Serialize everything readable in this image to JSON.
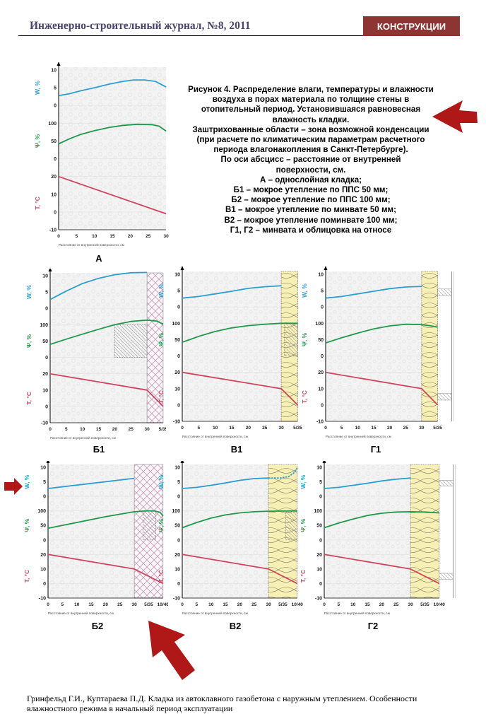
{
  "header": {
    "journal": "Инженерно-строительный журнал, №8, 2011",
    "section": "КОНСТРУКЦИИ",
    "accent_color": "#8e3433"
  },
  "caption": {
    "lines": [
      "Рисунок 4. Распределение влаги, температуры и влажности",
      "воздуха в порах материала по толщине стены в",
      "отопительный период. Установившаяся равновесная",
      "влажность кладки.",
      "Заштрихованные области – зона возможной конденсации",
      "(при расчете по климатическим параметрам расчетного",
      "периода влагонакопления в Санкт-Петербурге).",
      "По оси абсцисс – расстояние от внутренней",
      "поверхности, см.",
      "А – однослойная кладка;",
      "Б1 – мокрое утепление по ППС 50 мм;",
      "Б2 – мокрое утепление по ППС 100 мм;",
      "В1 – мокрое утепление по минвате 50 мм;",
      "В2 – мокрое утепление поминвате 100 мм;",
      "Г1, Г2 – минвата и облицовка на относе"
    ]
  },
  "axes": {
    "w_label": "W, %",
    "psi_label": "Ψ, %",
    "t_label": "T, °C",
    "x_title": "Расстояние от внутренней поверхности, см",
    "w_ticks": [
      "10",
      "5",
      "0"
    ],
    "psi_ticks": [
      "100",
      "50",
      "0"
    ],
    "t_ticks": [
      "20",
      "10",
      "0",
      "-10"
    ],
    "colors": {
      "W": "#2a9fd0",
      "Psi": "#1f9a4a",
      "T": "#d0455e"
    }
  },
  "chart_data": [
    {
      "id": "A",
      "label": "А",
      "type": "line",
      "layer": "none",
      "ext_cm": 0,
      "x_ticks": [
        "0",
        "5",
        "10",
        "15",
        "20",
        "25",
        "30"
      ],
      "W": [
        [
          0,
          2.8
        ],
        [
          3,
          3.3
        ],
        [
          6,
          4.1
        ],
        [
          10,
          5.0
        ],
        [
          14,
          6.0
        ],
        [
          18,
          6.8
        ],
        [
          21,
          7.2
        ],
        [
          24,
          7.2
        ],
        [
          27,
          6.8
        ],
        [
          30,
          5.2
        ]
      ],
      "Psi": [
        [
          0,
          42
        ],
        [
          3,
          56
        ],
        [
          6,
          68
        ],
        [
          10,
          79
        ],
        [
          14,
          88
        ],
        [
          18,
          94
        ],
        [
          22,
          97
        ],
        [
          26,
          96
        ],
        [
          28,
          92
        ],
        [
          30,
          78
        ]
      ],
      "T": [
        [
          0,
          20
        ],
        [
          30,
          -1
        ]
      ]
    },
    {
      "id": "B1",
      "label": "Б1",
      "type": "line",
      "layer": "cross",
      "ext_cm": 5,
      "x_ticks": [
        "0",
        "5",
        "10",
        "15",
        "20",
        "25",
        "30",
        "5/35"
      ],
      "W": [
        [
          0,
          2.7
        ],
        [
          5,
          5.3
        ],
        [
          10,
          7.6
        ],
        [
          15,
          9.2
        ],
        [
          20,
          10.3
        ],
        [
          25,
          10.9
        ],
        [
          30,
          11.0
        ]
      ],
      "Psi": [
        [
          0,
          40
        ],
        [
          5,
          56
        ],
        [
          10,
          71
        ],
        [
          15,
          86
        ],
        [
          20,
          100
        ],
        [
          25,
          110
        ],
        [
          30,
          114
        ],
        [
          33,
          111
        ],
        [
          35,
          102
        ]
      ],
      "T": [
        [
          0,
          20
        ],
        [
          30,
          10
        ],
        [
          35,
          0
        ]
      ],
      "zone": {
        "x": [
          20,
          30
        ],
        "psi": [
          0,
          100
        ]
      }
    },
    {
      "id": "V1",
      "label": "В1",
      "type": "line",
      "layer": "wool",
      "ext_cm": 5,
      "x_ticks": [
        "0",
        "5",
        "10",
        "15",
        "20",
        "25",
        "30",
        "5/35"
      ],
      "W": [
        [
          0,
          2.7
        ],
        [
          5,
          3.2
        ],
        [
          10,
          4.0
        ],
        [
          15,
          4.8
        ],
        [
          20,
          5.7
        ],
        [
          25,
          6.2
        ],
        [
          30,
          6.5
        ]
      ],
      "Psi": [
        [
          0,
          42
        ],
        [
          5,
          60
        ],
        [
          10,
          75
        ],
        [
          15,
          86
        ],
        [
          20,
          93
        ],
        [
          25,
          97
        ],
        [
          30,
          100
        ],
        [
          35,
          100
        ]
      ],
      "T": [
        [
          0,
          20
        ],
        [
          30,
          10
        ],
        [
          35,
          0
        ]
      ],
      "zone": {
        "x": [
          31,
          35
        ],
        "psi": [
          0,
          100
        ]
      }
    },
    {
      "id": "G1",
      "label": "Г1",
      "type": "line",
      "layer": "wool",
      "ext_cm": 5,
      "facade": true,
      "x_ticks": [
        "0",
        "5",
        "10",
        "15",
        "20",
        "25",
        "30",
        "5/35"
      ],
      "W": [
        [
          0,
          2.7
        ],
        [
          5,
          3.2
        ],
        [
          10,
          4.0
        ],
        [
          15,
          4.8
        ],
        [
          20,
          5.6
        ],
        [
          25,
          6.1
        ],
        [
          30,
          6.3
        ]
      ],
      "Psi": [
        [
          0,
          40
        ],
        [
          5,
          56
        ],
        [
          10,
          70
        ],
        [
          15,
          83
        ],
        [
          20,
          92
        ],
        [
          25,
          97
        ],
        [
          30,
          96
        ],
        [
          33,
          92
        ],
        [
          35,
          88
        ]
      ],
      "T": [
        [
          0,
          20
        ],
        [
          30,
          10
        ],
        [
          35,
          0
        ]
      ]
    },
    {
      "id": "B2",
      "label": "Б2",
      "type": "line",
      "layer": "cross",
      "ext_cm": 10,
      "x_ticks": [
        "0",
        "5",
        "10",
        "15",
        "20",
        "25",
        "30",
        "5/35",
        "10/40"
      ],
      "W": [
        [
          0,
          2.7
        ],
        [
          30,
          6.2
        ]
      ],
      "Psi": [
        [
          0,
          40
        ],
        [
          10,
          60
        ],
        [
          20,
          80
        ],
        [
          30,
          97
        ],
        [
          34,
          100
        ],
        [
          37,
          100
        ],
        [
          39,
          95
        ],
        [
          40,
          82
        ]
      ],
      "T": [
        [
          0,
          20
        ],
        [
          30,
          10
        ],
        [
          40,
          0
        ]
      ],
      "zone": {
        "x": [
          33,
          37.5
        ],
        "psi": [
          0,
          100
        ]
      }
    },
    {
      "id": "V2",
      "label": "В2",
      "type": "line",
      "layer": "wool",
      "ext_cm": 10,
      "x_ticks": [
        "0",
        "5",
        "10",
        "15",
        "20",
        "25",
        "30",
        "5/35",
        "10/40"
      ],
      "W": [
        [
          0,
          2.7
        ],
        [
          5,
          3.1
        ],
        [
          10,
          3.8
        ],
        [
          15,
          4.6
        ],
        [
          20,
          5.5
        ],
        [
          25,
          6.1
        ],
        [
          30,
          6.3
        ]
      ],
      "W_dashed": [
        [
          30,
          6.3
        ],
        [
          34,
          6.3
        ],
        [
          37,
          6.8
        ],
        [
          39,
          8.2
        ],
        [
          40,
          9.8
        ]
      ],
      "Psi": [
        [
          0,
          42
        ],
        [
          5,
          60
        ],
        [
          10,
          75
        ],
        [
          15,
          86
        ],
        [
          20,
          93
        ],
        [
          25,
          97
        ],
        [
          30,
          99
        ],
        [
          40,
          100
        ]
      ],
      "T": [
        [
          0,
          20
        ],
        [
          30,
          10
        ],
        [
          40,
          0
        ]
      ],
      "zone": {
        "x": [
          36,
          40
        ],
        "psi": [
          0,
          96
        ]
      }
    },
    {
      "id": "G2",
      "label": "Г2",
      "type": "line",
      "layer": "wool",
      "ext_cm": 10,
      "facade": true,
      "x_ticks": [
        "0",
        "5",
        "10",
        "15",
        "20",
        "25",
        "30",
        "5/35",
        "10/40"
      ],
      "W": [
        [
          0,
          2.7
        ],
        [
          5,
          3.1
        ],
        [
          10,
          3.8
        ],
        [
          15,
          4.5
        ],
        [
          20,
          5.3
        ],
        [
          25,
          5.9
        ],
        [
          30,
          6.3
        ]
      ],
      "Psi": [
        [
          0,
          42
        ],
        [
          5,
          58
        ],
        [
          10,
          72
        ],
        [
          15,
          84
        ],
        [
          20,
          92
        ],
        [
          25,
          96
        ],
        [
          30,
          97
        ],
        [
          35,
          96
        ],
        [
          40,
          93
        ]
      ],
      "T": [
        [
          0,
          20
        ],
        [
          30,
          10
        ],
        [
          40,
          0
        ]
      ]
    }
  ],
  "footer": "Гринфельд Г.И., Куптараева П.Д. Кладка из автоклавного газобетона с наружным утеплением. Особенности влажностного режима в начальный период эксплуатации"
}
